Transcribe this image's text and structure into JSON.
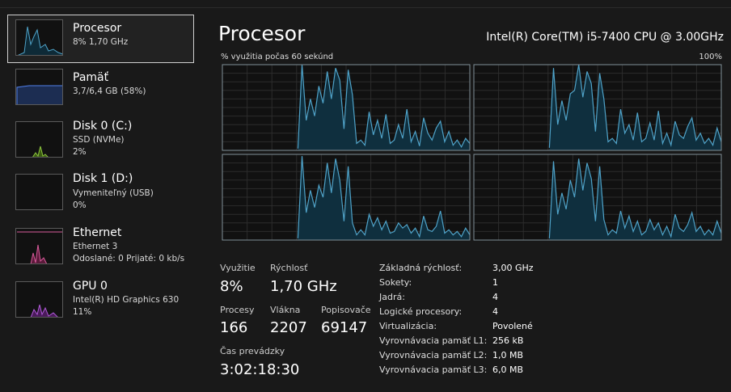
{
  "sidebar": [
    {
      "title": "Procesor",
      "lines": [
        "8% 1,70 GHz"
      ]
    },
    {
      "title": "Pamäť",
      "lines": [
        "3,7/6,4 GB (58%)"
      ]
    },
    {
      "title": "Disk 0 (C:)",
      "lines": [
        "SSD (NVMe)",
        "2%"
      ]
    },
    {
      "title": "Disk 1 (D:)",
      "lines": [
        "Vymeniteľný (USB)",
        "0%"
      ]
    },
    {
      "title": "Ethernet",
      "lines": [
        "Ethernet 3",
        "Odoslané: 0 Prijaté: 0 kb/s"
      ]
    },
    {
      "title": "GPU 0",
      "lines": [
        "Intel(R) HD Graphics 630",
        "11%"
      ]
    }
  ],
  "header": {
    "title": "Procesor",
    "cpu": "Intel(R) Core(TM) i5-7400 CPU @ 3.00GHz"
  },
  "graph": {
    "caption": "% využitia počas 60 sekúnd",
    "y_max": {
      "value": 100,
      "label": "100%"
    },
    "cores": [
      {
        "values": [
          null,
          null,
          null,
          null,
          null,
          null,
          null,
          null,
          null,
          null,
          null,
          null,
          null,
          null,
          null,
          null,
          null,
          null,
          2,
          100,
          35,
          60,
          40,
          75,
          55,
          92,
          60,
          96,
          82,
          25,
          94,
          65,
          8,
          12,
          6,
          45,
          18,
          35,
          14,
          42,
          8,
          12,
          30,
          14,
          48,
          10,
          22,
          5,
          38,
          20,
          12,
          26,
          34,
          10,
          22,
          6,
          12,
          4,
          14,
          8
        ]
      },
      {
        "values": [
          null,
          null,
          null,
          null,
          null,
          null,
          null,
          null,
          null,
          null,
          null,
          null,
          null,
          null,
          null,
          null,
          null,
          null,
          3,
          96,
          30,
          58,
          35,
          66,
          70,
          100,
          62,
          92,
          78,
          22,
          90,
          60,
          10,
          14,
          8,
          48,
          20,
          30,
          12,
          44,
          10,
          14,
          32,
          12,
          46,
          8,
          20,
          6,
          34,
          18,
          14,
          28,
          38,
          12,
          20,
          8,
          14,
          6,
          26,
          10
        ]
      },
      {
        "values": [
          null,
          null,
          null,
          null,
          null,
          null,
          null,
          null,
          null,
          null,
          null,
          null,
          null,
          null,
          null,
          null,
          null,
          null,
          2,
          98,
          32,
          58,
          38,
          64,
          50,
          90,
          55,
          95,
          70,
          22,
          86,
          20,
          6,
          12,
          6,
          30,
          16,
          26,
          12,
          22,
          8,
          10,
          20,
          14,
          18,
          8,
          14,
          4,
          28,
          12,
          10,
          16,
          34,
          8,
          12,
          6,
          10,
          4,
          14,
          6
        ]
      },
      {
        "values": [
          null,
          null,
          null,
          null,
          null,
          null,
          null,
          null,
          null,
          null,
          null,
          null,
          null,
          null,
          null,
          null,
          null,
          null,
          2,
          92,
          30,
          55,
          36,
          70,
          50,
          95,
          58,
          90,
          72,
          22,
          86,
          24,
          6,
          12,
          8,
          34,
          14,
          28,
          10,
          22,
          6,
          10,
          24,
          12,
          20,
          6,
          16,
          4,
          30,
          14,
          10,
          18,
          32,
          10,
          16,
          6,
          12,
          6,
          22,
          8
        ]
      }
    ]
  },
  "stats": [
    {
      "label": "Využitie",
      "value": "8%"
    },
    {
      "label": "Rýchlosť",
      "value": "1,70 GHz"
    },
    {
      "label": "Procesy",
      "value": "166"
    },
    {
      "label": "Vlákna",
      "value": "2207"
    },
    {
      "label": "Popisovače",
      "value": "69147"
    },
    {
      "label": "Čas prevádzky",
      "value": "3:02:18:30"
    }
  ],
  "details": [
    {
      "label": "Základná rýchlosť:",
      "value": "3,00 GHz"
    },
    {
      "label": "Sokety:",
      "value": "1"
    },
    {
      "label": "Jadrá:",
      "value": "4"
    },
    {
      "label": "Logické procesory:",
      "value": "4"
    },
    {
      "label": "Virtualizácia:",
      "value": "Povolené"
    },
    {
      "label": "Vyrovnávacia pamäť L1:",
      "value": "256 kB"
    },
    {
      "label": "Vyrovnávacia pamäť L2:",
      "value": "1,0 MB"
    },
    {
      "label": "Vyrovnávacia pamäť L3:",
      "value": "6,0 MB"
    }
  ]
}
